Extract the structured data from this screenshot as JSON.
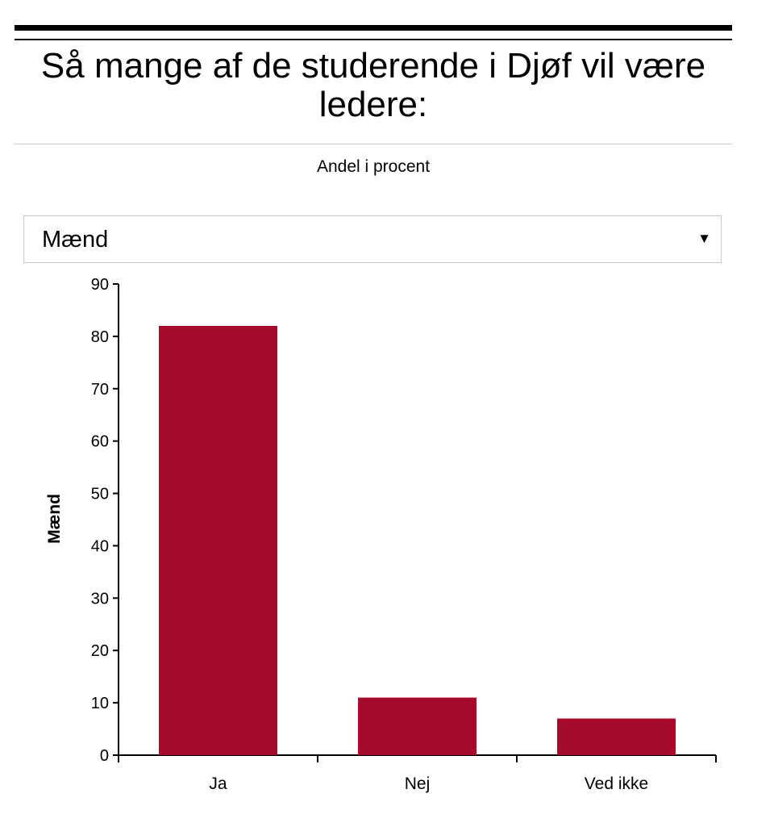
{
  "title": "Så mange af de studerende i Djøf vil være ledere:",
  "subtitle": "Andel i procent",
  "dropdown": {
    "selected": "Mænd",
    "arrow_icon": "triangle-down-icon"
  },
  "colors": {
    "bar": "#a50a2a",
    "axis": "#000000"
  },
  "chart_data": {
    "type": "bar",
    "categories": [
      "Ja",
      "Nej",
      "Ved ikke"
    ],
    "values": [
      82,
      11,
      7
    ],
    "ylabel": "Mænd",
    "xlabel": "",
    "ylim": [
      0,
      90
    ],
    "yticks": [
      0,
      10,
      20,
      30,
      40,
      50,
      60,
      70,
      80,
      90
    ],
    "grid": false
  }
}
